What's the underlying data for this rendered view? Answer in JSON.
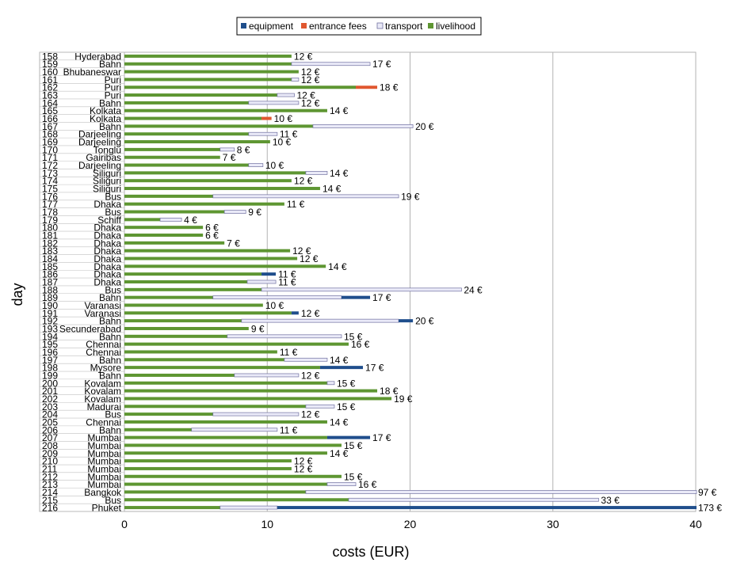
{
  "chart_data": {
    "type": "bar",
    "orientation": "horizontal",
    "stacked": true,
    "xlabel": "costs (EUR)",
    "ylabel": "day",
    "xlim": [
      -4.5,
      40
    ],
    "xticks": [
      0,
      10,
      20,
      30,
      40
    ],
    "legend_position": "top",
    "grid": true,
    "legend": [
      "equipment",
      "entrance fees",
      "transport",
      "livelihood"
    ],
    "colors": {
      "equipment": "#1f4e8c",
      "entrance fees": "#e0572f",
      "transport": "#eaeaf8",
      "livelihood": "#5e9632"
    },
    "rows": [
      {
        "day": "158",
        "place": "Hyderabad",
        "equipment": 0,
        "entrance": 0,
        "transport": 0,
        "livelihood": 11.7,
        "label": "12 €"
      },
      {
        "day": "159",
        "place": "Bahn",
        "equipment": 0,
        "entrance": 0,
        "transport": 5.5,
        "livelihood": 11.7,
        "label": "17 €"
      },
      {
        "day": "160",
        "place": "Bhubaneswar",
        "equipment": 0,
        "entrance": 0,
        "transport": 0,
        "livelihood": 12.2,
        "label": "12 €"
      },
      {
        "day": "161",
        "place": "Puri",
        "equipment": 0,
        "entrance": 0,
        "transport": 0.5,
        "livelihood": 11.7,
        "label": "12 €"
      },
      {
        "day": "162",
        "place": "Puri",
        "equipment": 0,
        "entrance": 1.5,
        "transport": 0,
        "livelihood": 16.2,
        "label": "18 €"
      },
      {
        "day": "163",
        "place": "Puri",
        "equipment": 0,
        "entrance": 0,
        "transport": 1.2,
        "livelihood": 10.7,
        "label": "12 €"
      },
      {
        "day": "164",
        "place": "Bahn",
        "equipment": 0,
        "entrance": 0,
        "transport": 3.5,
        "livelihood": 8.7,
        "label": "12 €"
      },
      {
        "day": "165",
        "place": "Kolkata",
        "equipment": 0,
        "entrance": 0,
        "transport": 0,
        "livelihood": 14.2,
        "label": "14 €"
      },
      {
        "day": "166",
        "place": "Kolkata",
        "equipment": 0,
        "entrance": 0.7,
        "transport": 0,
        "livelihood": 9.6,
        "label": "10 €"
      },
      {
        "day": "167",
        "place": "Bahn",
        "equipment": 0,
        "entrance": 0,
        "transport": 7,
        "livelihood": 13.2,
        "label": "20 €"
      },
      {
        "day": "168",
        "place": "Darjeeling",
        "equipment": 0,
        "entrance": 0,
        "transport": 2,
        "livelihood": 8.7,
        "label": "11 €"
      },
      {
        "day": "169",
        "place": "Darjeeling",
        "equipment": 0,
        "entrance": 0,
        "transport": 0,
        "livelihood": 10.2,
        "label": "10 €"
      },
      {
        "day": "170",
        "place": "Tonglu",
        "equipment": 0,
        "entrance": 0,
        "transport": 1,
        "livelihood": 6.7,
        "label": "8 €"
      },
      {
        "day": "171",
        "place": "Gairibas",
        "equipment": 0,
        "entrance": 0,
        "transport": 0,
        "livelihood": 6.7,
        "label": "7 €"
      },
      {
        "day": "172",
        "place": "Darjeeling",
        "equipment": 0,
        "entrance": 0,
        "transport": 1,
        "livelihood": 8.7,
        "label": "10 €"
      },
      {
        "day": "173",
        "place": "Siliguri",
        "equipment": 0,
        "entrance": 0,
        "transport": 1.5,
        "livelihood": 12.7,
        "label": "14 €"
      },
      {
        "day": "174",
        "place": "Siliguri",
        "equipment": 0,
        "entrance": 0,
        "transport": 0,
        "livelihood": 11.7,
        "label": "12 €"
      },
      {
        "day": "175",
        "place": "Siliguri",
        "equipment": 0,
        "entrance": 0,
        "transport": 0,
        "livelihood": 13.7,
        "label": "14 €"
      },
      {
        "day": "176",
        "place": "Bus",
        "equipment": 0,
        "entrance": 0,
        "transport": 13,
        "livelihood": 6.2,
        "label": "19 €"
      },
      {
        "day": "177",
        "place": "Dhaka",
        "equipment": 0,
        "entrance": 0,
        "transport": 0,
        "livelihood": 11.2,
        "label": "11 €"
      },
      {
        "day": "178",
        "place": "Bus",
        "equipment": 0,
        "entrance": 0,
        "transport": 1.5,
        "livelihood": 7,
        "label": "9 €"
      },
      {
        "day": "179",
        "place": "Schiff",
        "equipment": 0,
        "entrance": 0,
        "transport": 1.5,
        "livelihood": 2.5,
        "label": "4 €"
      },
      {
        "day": "180",
        "place": "Dhaka",
        "equipment": 0,
        "entrance": 0,
        "transport": 0,
        "livelihood": 5.5,
        "label": "6 €"
      },
      {
        "day": "181",
        "place": "Dhaka",
        "equipment": 0,
        "entrance": 0,
        "transport": 0,
        "livelihood": 5.5,
        "label": "6 €"
      },
      {
        "day": "182",
        "place": "Dhaka",
        "equipment": 0,
        "entrance": 0,
        "transport": 0,
        "livelihood": 7,
        "label": "7 €"
      },
      {
        "day": "183",
        "place": "Dhaka",
        "equipment": 0,
        "entrance": 0,
        "transport": 0,
        "livelihood": 11.6,
        "label": "12 €"
      },
      {
        "day": "184",
        "place": "Dhaka",
        "equipment": 0,
        "entrance": 0,
        "transport": 0,
        "livelihood": 12.1,
        "label": "12 €"
      },
      {
        "day": "185",
        "place": "Dhaka",
        "equipment": 0,
        "entrance": 0,
        "transport": 0,
        "livelihood": 14.1,
        "label": "14 €"
      },
      {
        "day": "186",
        "place": "Dhaka",
        "equipment": 1,
        "entrance": 0,
        "transport": 0,
        "livelihood": 9.6,
        "label": "11 €"
      },
      {
        "day": "187",
        "place": "Dhaka",
        "equipment": 0,
        "entrance": 0,
        "transport": 2,
        "livelihood": 8.6,
        "label": "11 €"
      },
      {
        "day": "188",
        "place": "Bus",
        "equipment": 0,
        "entrance": 0,
        "transport": 14,
        "livelihood": 9.6,
        "label": "24 €"
      },
      {
        "day": "189",
        "place": "Bahn",
        "equipment": 2,
        "entrance": 0,
        "transport": 9,
        "livelihood": 6.2,
        "label": "17 €"
      },
      {
        "day": "190",
        "place": "Varanasi",
        "equipment": 0,
        "entrance": 0,
        "transport": 0,
        "livelihood": 9.7,
        "label": "10 €"
      },
      {
        "day": "191",
        "place": "Varanasi",
        "equipment": 0.5,
        "entrance": 0,
        "transport": 0,
        "livelihood": 11.7,
        "label": "12 €"
      },
      {
        "day": "192",
        "place": "Bahn",
        "equipment": 1,
        "entrance": 0,
        "transport": 11,
        "livelihood": 8.2,
        "label": "20 €"
      },
      {
        "day": "193",
        "place": "Secunderabad",
        "equipment": 0,
        "entrance": 0,
        "transport": 0,
        "livelihood": 8.7,
        "label": "9 €"
      },
      {
        "day": "194",
        "place": "Bahn",
        "equipment": 0,
        "entrance": 0,
        "transport": 8,
        "livelihood": 7.2,
        "label": "15 €"
      },
      {
        "day": "195",
        "place": "Chennai",
        "equipment": 0,
        "entrance": 0,
        "transport": 0,
        "livelihood": 15.7,
        "label": "16 €"
      },
      {
        "day": "196",
        "place": "Chennai",
        "equipment": 0,
        "entrance": 0,
        "transport": 0,
        "livelihood": 10.7,
        "label": "11 €"
      },
      {
        "day": "197",
        "place": "Bahn",
        "equipment": 0,
        "entrance": 0,
        "transport": 3,
        "livelihood": 11.2,
        "label": "14 €"
      },
      {
        "day": "198",
        "place": "Mysore",
        "equipment": 3,
        "entrance": 0,
        "transport": 0,
        "livelihood": 13.7,
        "label": "17 €"
      },
      {
        "day": "199",
        "place": "Bahn",
        "equipment": 0,
        "entrance": 0,
        "transport": 4.5,
        "livelihood": 7.7,
        "label": "12 €"
      },
      {
        "day": "200",
        "place": "Kovalam",
        "equipment": 0,
        "entrance": 0,
        "transport": 0.5,
        "livelihood": 14.2,
        "label": "15 €"
      },
      {
        "day": "201",
        "place": "Kovalam",
        "equipment": 0,
        "entrance": 0,
        "transport": 0,
        "livelihood": 17.7,
        "label": "18 €"
      },
      {
        "day": "202",
        "place": "Kovalam",
        "equipment": 0,
        "entrance": 0,
        "transport": 0,
        "livelihood": 18.7,
        "label": "19 €"
      },
      {
        "day": "203",
        "place": "Madurai",
        "equipment": 0,
        "entrance": 0,
        "transport": 2,
        "livelihood": 12.7,
        "label": "15 €"
      },
      {
        "day": "204",
        "place": "Bus",
        "equipment": 0,
        "entrance": 0,
        "transport": 6,
        "livelihood": 6.2,
        "label": "12 €"
      },
      {
        "day": "205",
        "place": "Chennai",
        "equipment": 0,
        "entrance": 0,
        "transport": 0,
        "livelihood": 14.2,
        "label": "14 €"
      },
      {
        "day": "206",
        "place": "Bahn",
        "equipment": 0,
        "entrance": 0,
        "transport": 6,
        "livelihood": 4.7,
        "label": "11 €"
      },
      {
        "day": "207",
        "place": "Mumbai",
        "equipment": 3,
        "entrance": 0,
        "transport": 0,
        "livelihood": 14.2,
        "label": "17 €"
      },
      {
        "day": "208",
        "place": "Mumbai",
        "equipment": 0,
        "entrance": 0,
        "transport": 0,
        "livelihood": 15.2,
        "label": "15 €"
      },
      {
        "day": "209",
        "place": "Mumbai",
        "equipment": 0,
        "entrance": 0,
        "transport": 0,
        "livelihood": 14.2,
        "label": "14 €"
      },
      {
        "day": "210",
        "place": "Mumbai",
        "equipment": 0,
        "entrance": 0,
        "transport": 0,
        "livelihood": 11.7,
        "label": "12 €"
      },
      {
        "day": "211",
        "place": "Mumbai",
        "equipment": 0,
        "entrance": 0,
        "transport": 0,
        "livelihood": 11.7,
        "label": "12 €"
      },
      {
        "day": "212",
        "place": "Mumbai",
        "equipment": 0,
        "entrance": 0,
        "transport": 0,
        "livelihood": 15.2,
        "label": "15 €"
      },
      {
        "day": "213",
        "place": "Mumbai",
        "equipment": 0,
        "entrance": 0,
        "transport": 2,
        "livelihood": 14.2,
        "label": "16 €"
      },
      {
        "day": "214",
        "place": "Bangkok",
        "equipment": 0,
        "entrance": 0,
        "transport": 84,
        "livelihood": 12.7,
        "label": "97 €"
      },
      {
        "day": "215",
        "place": "Bus",
        "equipment": 0,
        "entrance": 0,
        "transport": 17.5,
        "livelihood": 15.7,
        "label": "33 €"
      },
      {
        "day": "216",
        "place": "Phuket",
        "equipment": 162,
        "entrance": 0,
        "transport": 4,
        "livelihood": 6.7,
        "label": "173 €"
      }
    ]
  }
}
